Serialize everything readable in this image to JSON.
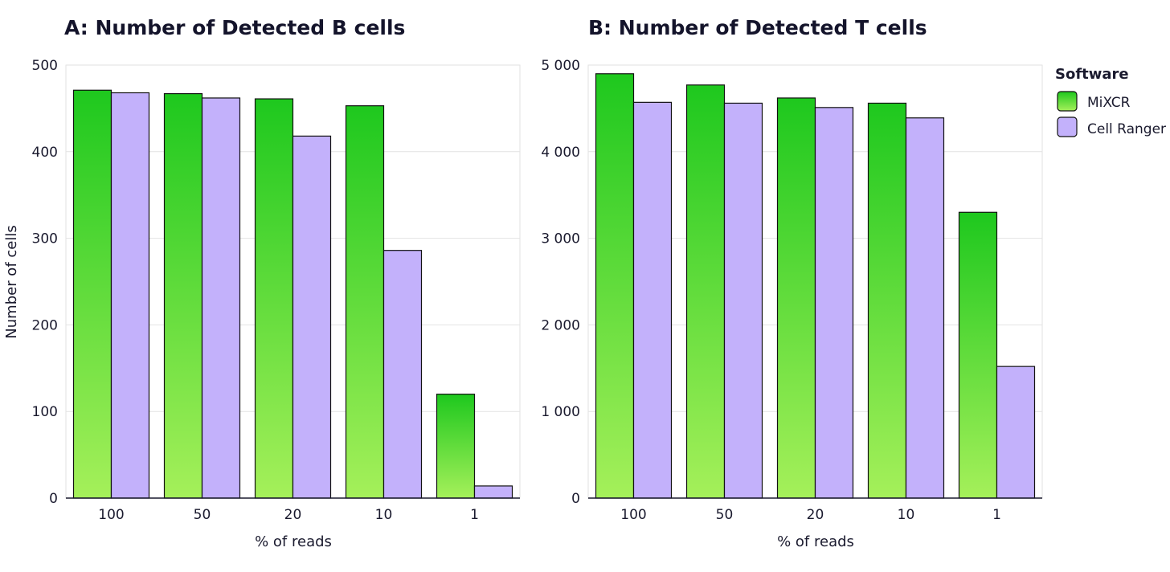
{
  "legend": {
    "title": "Software",
    "entries": [
      {
        "name": "MiXCR",
        "color_top": "#1ec81e",
        "color_bottom": "#a5f05a"
      },
      {
        "name": "Cell Ranger",
        "color": "#c3b1fb"
      }
    ]
  },
  "chart_data": [
    {
      "type": "bar",
      "title": "A:  Number of Detected B cells",
      "xlabel": "% of reads",
      "ylabel": "Number of cells",
      "categories": [
        "100",
        "50",
        "20",
        "10",
        "1"
      ],
      "ylim": [
        0,
        500
      ],
      "yticks": [
        0,
        100,
        200,
        300,
        400,
        500
      ],
      "ytick_labels": [
        "0",
        "100",
        "200",
        "300",
        "400",
        "500"
      ],
      "grid": true,
      "series": [
        {
          "name": "MiXCR",
          "values": [
            471,
            467,
            461,
            453,
            120
          ]
        },
        {
          "name": "Cell Ranger",
          "values": [
            468,
            462,
            418,
            286,
            14
          ]
        }
      ]
    },
    {
      "type": "bar",
      "title": "B:  Number of Detected T cells",
      "xlabel": "% of reads",
      "ylabel": "",
      "categories": [
        "100",
        "50",
        "20",
        "10",
        "1"
      ],
      "ylim": [
        0,
        5000
      ],
      "yticks": [
        0,
        1000,
        2000,
        3000,
        4000,
        5000
      ],
      "ytick_labels": [
        "0",
        "1 000",
        "2 000",
        "3 000",
        "4 000",
        "5 000"
      ],
      "grid": true,
      "legend_position": "right",
      "series": [
        {
          "name": "MiXCR",
          "values": [
            4900,
            4770,
            4620,
            4560,
            3300
          ]
        },
        {
          "name": "Cell Ranger",
          "values": [
            4570,
            4560,
            4510,
            4390,
            1520
          ]
        }
      ]
    }
  ]
}
